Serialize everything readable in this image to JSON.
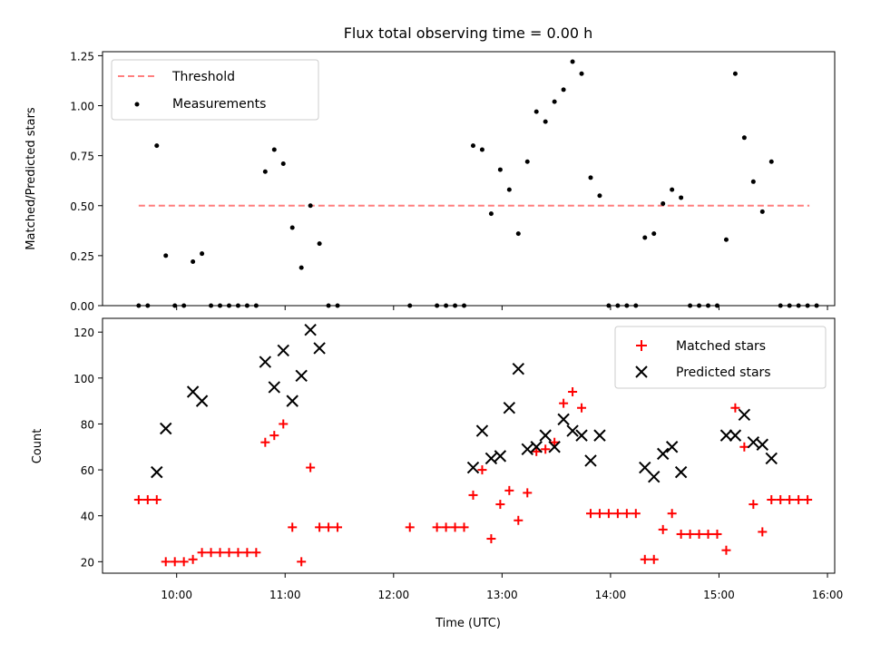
{
  "title": "Flux total observing time = 0.00 h",
  "chart_data": [
    {
      "type": "scatter",
      "ylabel": "Matched/Predicted stars",
      "xlabel": "",
      "xlim": [
        "09:19",
        "16:04"
      ],
      "ylim": [
        0,
        1.27
      ],
      "yticks": [
        "0.00",
        "0.25",
        "0.50",
        "0.75",
        "1.00",
        "1.25"
      ],
      "legend": {
        "position": "top-left",
        "entries": [
          "Threshold",
          "Measurements"
        ]
      },
      "threshold": {
        "name": "Threshold",
        "value": 0.5,
        "x_start": "09:39",
        "x_end": "15:50",
        "color": "#ff7f7f",
        "style": "dashed"
      },
      "series": [
        {
          "name": "Measurements",
          "color": "#000000",
          "marker": "dot",
          "points": [
            [
              "09:39",
              0
            ],
            [
              "09:44",
              0
            ],
            [
              "09:49",
              0.8
            ],
            [
              "09:54",
              0.25
            ],
            [
              "09:59",
              0
            ],
            [
              "10:04",
              0
            ],
            [
              "10:09",
              0.22
            ],
            [
              "10:14",
              0.26
            ],
            [
              "10:19",
              0
            ],
            [
              "10:24",
              0
            ],
            [
              "10:29",
              0
            ],
            [
              "10:34",
              0
            ],
            [
              "10:39",
              0
            ],
            [
              "10:44",
              0
            ],
            [
              "10:49",
              0.67
            ],
            [
              "10:54",
              0.78
            ],
            [
              "10:59",
              0.71
            ],
            [
              "11:04",
              0.39
            ],
            [
              "11:09",
              0.19
            ],
            [
              "11:14",
              0.5
            ],
            [
              "11:19",
              0.31
            ],
            [
              "11:24",
              0
            ],
            [
              "11:29",
              0
            ],
            [
              "12:09",
              0
            ],
            [
              "12:24",
              0
            ],
            [
              "12:29",
              0
            ],
            [
              "12:34",
              0
            ],
            [
              "12:39",
              0
            ],
            [
              "12:44",
              0.8
            ],
            [
              "12:49",
              0.78
            ],
            [
              "12:54",
              0.46
            ],
            [
              "12:59",
              0.68
            ],
            [
              "13:04",
              0.58
            ],
            [
              "13:09",
              0.36
            ],
            [
              "13:14",
              0.72
            ],
            [
              "13:19",
              0.97
            ],
            [
              "13:24",
              0.92
            ],
            [
              "13:29",
              1.02
            ],
            [
              "13:34",
              1.08
            ],
            [
              "13:39",
              1.22
            ],
            [
              "13:44",
              1.16
            ],
            [
              "13:49",
              0.64
            ],
            [
              "13:54",
              0.55
            ],
            [
              "13:59",
              0
            ],
            [
              "14:04",
              0
            ],
            [
              "14:09",
              0
            ],
            [
              "14:14",
              0
            ],
            [
              "14:19",
              0.34
            ],
            [
              "14:24",
              0.36
            ],
            [
              "14:29",
              0.51
            ],
            [
              "14:34",
              0.58
            ],
            [
              "14:39",
              0.54
            ],
            [
              "14:44",
              0
            ],
            [
              "14:49",
              0
            ],
            [
              "14:54",
              0
            ],
            [
              "14:59",
              0
            ],
            [
              "15:04",
              0.33
            ],
            [
              "15:09",
              1.16
            ],
            [
              "15:14",
              0.84
            ],
            [
              "15:19",
              0.62
            ],
            [
              "15:24",
              0.47
            ],
            [
              "15:29",
              0.72
            ],
            [
              "15:34",
              0
            ],
            [
              "15:39",
              0
            ],
            [
              "15:44",
              0
            ],
            [
              "15:49",
              0
            ],
            [
              "15:54",
              0
            ]
          ]
        }
      ]
    },
    {
      "type": "scatter",
      "ylabel": "Count",
      "xlabel": "Time (UTC)",
      "xlim": [
        "09:19",
        "16:04"
      ],
      "ylim": [
        15,
        126
      ],
      "xticks": [
        "10:00",
        "11:00",
        "12:00",
        "13:00",
        "14:00",
        "15:00",
        "16:00"
      ],
      "yticks": [
        "20",
        "40",
        "60",
        "80",
        "100",
        "120"
      ],
      "legend": {
        "position": "top-right",
        "entries": [
          "Matched stars",
          "Predicted stars"
        ]
      },
      "series": [
        {
          "name": "Matched stars",
          "color": "#ff0000",
          "marker": "plus",
          "points": [
            [
              "09:39",
              47
            ],
            [
              "09:44",
              47
            ],
            [
              "09:49",
              47
            ],
            [
              "09:54",
              20
            ],
            [
              "09:59",
              20
            ],
            [
              "10:04",
              20
            ],
            [
              "10:09",
              21
            ],
            [
              "10:14",
              24
            ],
            [
              "10:19",
              24
            ],
            [
              "10:24",
              24
            ],
            [
              "10:29",
              24
            ],
            [
              "10:34",
              24
            ],
            [
              "10:39",
              24
            ],
            [
              "10:44",
              24
            ],
            [
              "10:49",
              72
            ],
            [
              "10:54",
              75
            ],
            [
              "10:59",
              80
            ],
            [
              "11:04",
              35
            ],
            [
              "11:09",
              20
            ],
            [
              "11:14",
              61
            ],
            [
              "11:19",
              35
            ],
            [
              "11:24",
              35
            ],
            [
              "11:29",
              35
            ],
            [
              "12:09",
              35
            ],
            [
              "12:24",
              35
            ],
            [
              "12:29",
              35
            ],
            [
              "12:34",
              35
            ],
            [
              "12:39",
              35
            ],
            [
              "12:44",
              49
            ],
            [
              "12:49",
              60
            ],
            [
              "12:54",
              30
            ],
            [
              "12:59",
              45
            ],
            [
              "13:04",
              51
            ],
            [
              "13:09",
              38
            ],
            [
              "13:14",
              50
            ],
            [
              "13:19",
              68
            ],
            [
              "13:24",
              69
            ],
            [
              "13:29",
              72
            ],
            [
              "13:34",
              89
            ],
            [
              "13:39",
              94
            ],
            [
              "13:44",
              87
            ],
            [
              "13:49",
              41
            ],
            [
              "13:54",
              41
            ],
            [
              "13:59",
              41
            ],
            [
              "14:04",
              41
            ],
            [
              "14:09",
              41
            ],
            [
              "14:14",
              41
            ],
            [
              "14:19",
              21
            ],
            [
              "14:24",
              21
            ],
            [
              "14:29",
              34
            ],
            [
              "14:34",
              41
            ],
            [
              "14:39",
              32
            ],
            [
              "14:44",
              32
            ],
            [
              "14:49",
              32
            ],
            [
              "14:54",
              32
            ],
            [
              "14:59",
              32
            ],
            [
              "15:04",
              25
            ],
            [
              "15:09",
              87
            ],
            [
              "15:14",
              70
            ],
            [
              "15:19",
              45
            ],
            [
              "15:24",
              33
            ],
            [
              "15:29",
              47
            ],
            [
              "15:34",
              47
            ],
            [
              "15:39",
              47
            ],
            [
              "15:44",
              47
            ],
            [
              "15:49",
              47
            ]
          ]
        },
        {
          "name": "Predicted stars",
          "color": "#000000",
          "marker": "cross",
          "points": [
            [
              "09:49",
              59
            ],
            [
              "09:54",
              78
            ],
            [
              "10:09",
              94
            ],
            [
              "10:14",
              90
            ],
            [
              "10:49",
              107
            ],
            [
              "10:54",
              96
            ],
            [
              "10:59",
              112
            ],
            [
              "11:04",
              90
            ],
            [
              "11:09",
              101
            ],
            [
              "11:14",
              121
            ],
            [
              "11:19",
              113
            ],
            [
              "12:44",
              61
            ],
            [
              "12:49",
              77
            ],
            [
              "12:54",
              65
            ],
            [
              "12:59",
              66
            ],
            [
              "13:04",
              87
            ],
            [
              "13:09",
              104
            ],
            [
              "13:14",
              69
            ],
            [
              "13:19",
              70
            ],
            [
              "13:24",
              75
            ],
            [
              "13:29",
              70
            ],
            [
              "13:34",
              82
            ],
            [
              "13:39",
              77
            ],
            [
              "13:44",
              75
            ],
            [
              "13:49",
              64
            ],
            [
              "13:54",
              75
            ],
            [
              "14:19",
              61
            ],
            [
              "14:24",
              57
            ],
            [
              "14:29",
              67
            ],
            [
              "14:34",
              70
            ],
            [
              "14:39",
              59
            ],
            [
              "15:04",
              75
            ],
            [
              "15:09",
              75
            ],
            [
              "15:14",
              84
            ],
            [
              "15:19",
              72
            ],
            [
              "15:24",
              71
            ],
            [
              "15:29",
              65
            ]
          ]
        }
      ]
    }
  ]
}
